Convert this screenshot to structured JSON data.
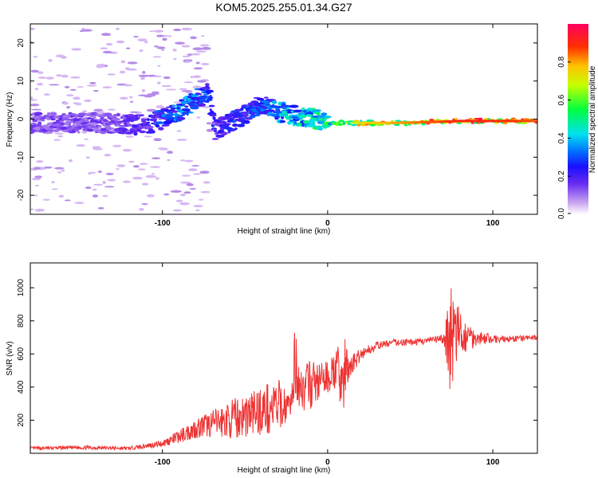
{
  "title": "KOM5.2025.255.01.34.G27",
  "chart_data": [
    {
      "type": "heatmap",
      "xlabel": "Height of straight line (km)",
      "ylabel": "Frequency (Hz)",
      "xlim": [
        -180,
        127
      ],
      "ylim": [
        -25,
        25
      ],
      "x_ticks": [
        -100,
        0,
        100
      ],
      "y_ticks": [
        -20,
        -10,
        0,
        10,
        20
      ],
      "colorbar": {
        "label": "Normalized spectral amplitude",
        "range": [
          0,
          1
        ],
        "ticks": [
          "0.0",
          "0.2",
          "0.4",
          "0.6",
          "0.8"
        ]
      },
      "colors": {
        "stops": [
          "#ffffff",
          "#c9a7f0",
          "#8e44f0",
          "#3a1ee8",
          "#0050ff",
          "#00c8ff",
          "#00ff66",
          "#ffd000",
          "#ff3b00",
          "#ff0055"
        ]
      },
      "ridge": {
        "x": [
          -140,
          -110,
          -100,
          -90,
          -80,
          -72,
          -68,
          -60,
          -50,
          -40,
          -30,
          -20,
          -10,
          0,
          10,
          20,
          40,
          60,
          80,
          100,
          127
        ],
        "freq": [
          -1,
          -1.5,
          0,
          2,
          5,
          7,
          -3,
          -1,
          1,
          4,
          2,
          1,
          0.5,
          -1,
          -1,
          -1,
          -1,
          -0.8,
          -0.5,
          -0.5,
          -0.5
        ],
        "amplitude": [
          0.15,
          0.2,
          0.3,
          0.35,
          0.35,
          0.3,
          0.2,
          0.25,
          0.3,
          0.3,
          0.4,
          0.45,
          0.45,
          0.55,
          0.6,
          0.75,
          0.8,
          0.85,
          0.9,
          0.9,
          0.85
        ]
      }
    },
    {
      "type": "line",
      "xlabel": "Height of straight line (km)",
      "ylabel": "SNR (v/v)",
      "xlim": [
        -180,
        127
      ],
      "ylim": [
        0,
        1150
      ],
      "x_ticks": [
        -100,
        0,
        100
      ],
      "y_ticks": [
        200,
        400,
        600,
        800,
        1000
      ],
      "series": [
        {
          "name": "SNR",
          "color": "#ee3333",
          "x": [
            -180,
            -150,
            -120,
            -100,
            -90,
            -80,
            -70,
            -60,
            -50,
            -40,
            -30,
            -22,
            -20,
            -15,
            -10,
            -5,
            0,
            5,
            10,
            15,
            20,
            30,
            40,
            50,
            60,
            70,
            75,
            80,
            90,
            100,
            110,
            127
          ],
          "y": [
            30,
            35,
            30,
            60,
            100,
            150,
            180,
            200,
            230,
            260,
            280,
            300,
            540,
            380,
            420,
            430,
            460,
            500,
            460,
            540,
            600,
            650,
            670,
            670,
            680,
            690,
            700,
            710,
            700,
            690,
            690,
            700
          ],
          "amp": [
            10,
            12,
            10,
            20,
            40,
            60,
            80,
            110,
            140,
            150,
            170,
            60,
            200,
            150,
            150,
            120,
            100,
            120,
            260,
            60,
            40,
            25,
            20,
            20,
            20,
            30,
            380,
            150,
            50,
            25,
            20,
            15
          ]
        }
      ]
    }
  ]
}
